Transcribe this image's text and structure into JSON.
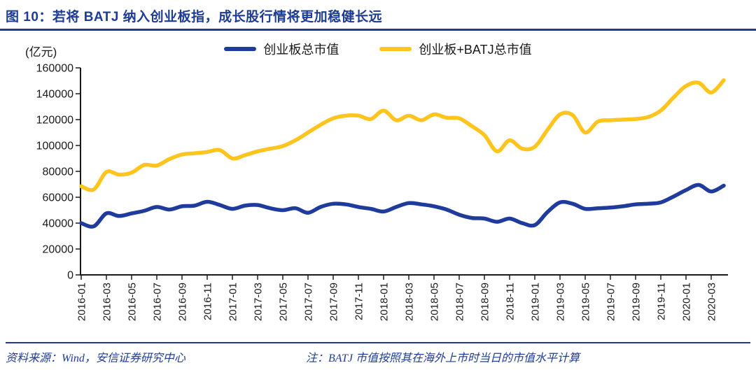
{
  "title": "图 10：若将 BATJ 纳入创业板指，成长股行情将更加稳健长远",
  "unit_label": "(亿元)",
  "legend": [
    {
      "label": "创业板总市值",
      "color": "#1F3C9C"
    },
    {
      "label": "创业板+BATJ总市值",
      "color": "#FFC41D"
    }
  ],
  "footer": {
    "source": "资料来源：Wind，安信证券研究中心",
    "note": "注：BATJ 市值按照其在海外上市时当日的市值水平计算"
  },
  "colors": {
    "accent_navy": "#1F3C94",
    "line_blue": "#1F3C9C",
    "line_yellow": "#FFC41D",
    "axis": "#1a1a1a"
  },
  "chart_data": {
    "type": "line",
    "title": "图 10：若将 BATJ 纳入创业板指，成长股行情将更加稳健长远",
    "ylabel": "(亿元)",
    "ylim": [
      0,
      160000
    ],
    "y_tick_step": 20000,
    "grid": false,
    "legend_position": "top",
    "x_tick_labels": [
      "2016-01",
      "2016-03",
      "2016-05",
      "2016-07",
      "2016-09",
      "2016-11",
      "2017-01",
      "2017-03",
      "2017-05",
      "2017-07",
      "2017-09",
      "2017-11",
      "2018-01",
      "2018-03",
      "2018-05",
      "2018-07",
      "2018-09",
      "2018-11",
      "2019-01",
      "2019-03",
      "2019-05",
      "2019-07",
      "2019-09",
      "2019-11",
      "2020-01",
      "2020-03"
    ],
    "x": [
      "2016-01",
      "2016-02",
      "2016-03",
      "2016-04",
      "2016-05",
      "2016-06",
      "2016-07",
      "2016-08",
      "2016-09",
      "2016-10",
      "2016-11",
      "2016-12",
      "2017-01",
      "2017-02",
      "2017-03",
      "2017-04",
      "2017-05",
      "2017-06",
      "2017-07",
      "2017-08",
      "2017-09",
      "2017-10",
      "2017-11",
      "2017-12",
      "2018-01",
      "2018-02",
      "2018-03",
      "2018-04",
      "2018-05",
      "2018-06",
      "2018-07",
      "2018-08",
      "2018-09",
      "2018-10",
      "2018-11",
      "2018-12",
      "2019-01",
      "2019-02",
      "2019-03",
      "2019-04",
      "2019-05",
      "2019-06",
      "2019-07",
      "2019-08",
      "2019-09",
      "2019-10",
      "2019-11",
      "2019-12",
      "2020-01",
      "2020-02",
      "2020-03",
      "2020-04"
    ],
    "series": [
      {
        "name": "创业板总市值",
        "color_key": "line_blue",
        "values": [
          40000,
          37500,
          47500,
          45500,
          47500,
          49500,
          52500,
          50500,
          53000,
          53500,
          56500,
          54000,
          51000,
          53500,
          54000,
          51500,
          50000,
          51500,
          48000,
          52500,
          55000,
          54500,
          52500,
          51000,
          49000,
          52500,
          55500,
          54500,
          53000,
          50500,
          46500,
          44000,
          43500,
          41000,
          43500,
          40000,
          38500,
          48500,
          56000,
          55000,
          51000,
          51500,
          52000,
          53000,
          54500,
          55000,
          56000,
          60500,
          65500,
          69500,
          64500,
          69000
        ]
      },
      {
        "name": "创业板+BATJ总市值",
        "color_key": "line_yellow",
        "values": [
          68500,
          66000,
          79500,
          77500,
          79000,
          85000,
          84500,
          89500,
          93000,
          94000,
          95000,
          96500,
          90000,
          92500,
          95500,
          97500,
          99500,
          104000,
          110000,
          116000,
          121000,
          123000,
          123000,
          120500,
          127000,
          119500,
          123000,
          119500,
          124000,
          121500,
          121000,
          115000,
          108000,
          95500,
          104000,
          97500,
          99000,
          112000,
          124000,
          123500,
          110000,
          118500,
          119500,
          120000,
          120500,
          122000,
          127000,
          137000,
          146000,
          148500,
          141000,
          150500
        ]
      }
    ]
  }
}
